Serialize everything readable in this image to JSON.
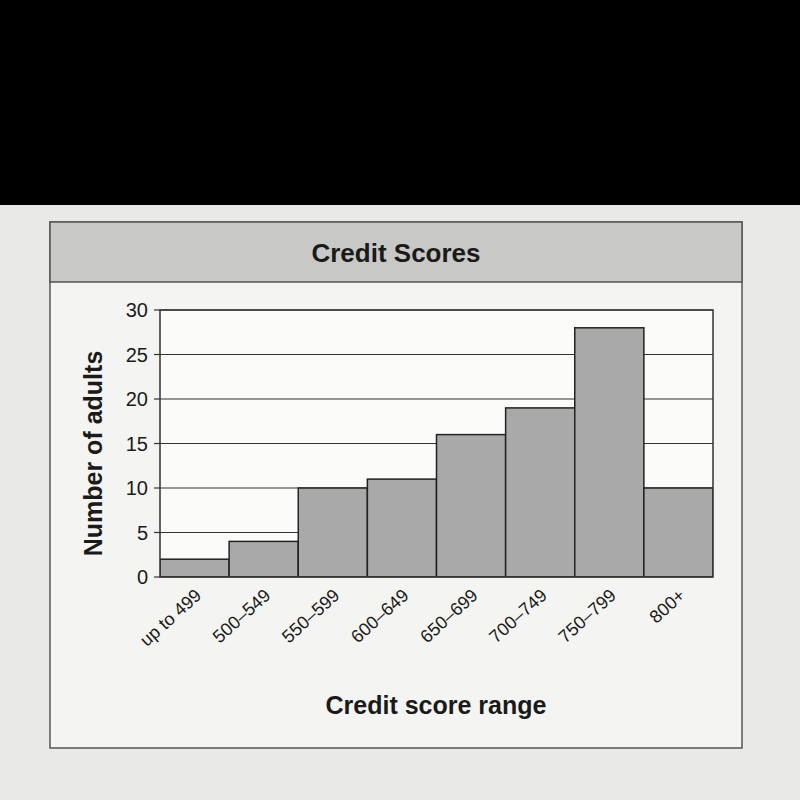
{
  "chart_data": {
    "type": "bar",
    "title": "Credit Scores",
    "x_label": "Credit score range",
    "y_label": "Number of adults",
    "categories": [
      "up to 499",
      "500–549",
      "550–599",
      "600–649",
      "650–699",
      "700–749",
      "750–799",
      "800+"
    ],
    "values": [
      2,
      4,
      10,
      11,
      16,
      19,
      28,
      10
    ],
    "color": "#a9a9a9",
    "ylim": [
      0,
      30
    ],
    "yticks": [
      0,
      5,
      10,
      15,
      20,
      25,
      30
    ],
    "grid": true
  }
}
